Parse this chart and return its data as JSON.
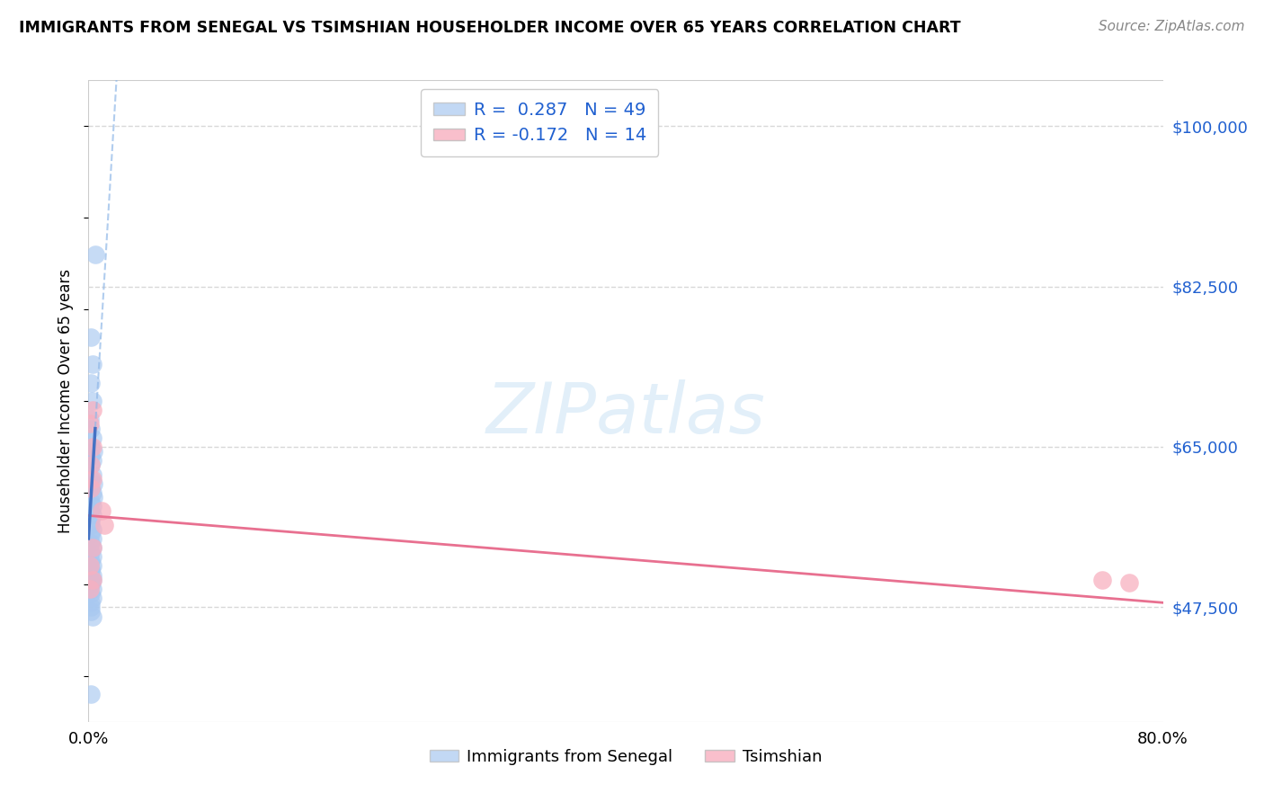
{
  "title": "IMMIGRANTS FROM SENEGAL VS TSIMSHIAN HOUSEHOLDER INCOME OVER 65 YEARS CORRELATION CHART",
  "source": "Source: ZipAtlas.com",
  "ylabel": "Householder Income Over 65 years",
  "xlim": [
    0.0,
    0.8
  ],
  "ylim": [
    35000,
    105000
  ],
  "yticks": [
    47500,
    65000,
    82500,
    100000
  ],
  "ytick_labels": [
    "$47,500",
    "$65,000",
    "$82,500",
    "$100,000"
  ],
  "xticks": [
    0.0,
    0.1,
    0.2,
    0.3,
    0.4,
    0.5,
    0.6,
    0.7,
    0.8
  ],
  "xtick_labels": [
    "0.0%",
    "",
    "",
    "",
    "",
    "",
    "",
    "",
    "80.0%"
  ],
  "background_color": "#ffffff",
  "grid_color": "#d8d8d8",
  "senegal_color": "#a8c8f0",
  "tsimshian_color": "#f8b0c0",
  "senegal_line_solid_color": "#4472c4",
  "senegal_line_dash_color": "#90b8e8",
  "tsimshian_line_color": "#e87090",
  "R_senegal": 0.287,
  "N_senegal": 49,
  "R_tsimshian": -0.172,
  "N_tsimshian": 14,
  "watermark": "ZIPatlas",
  "senegal_label": "Immigrants from Senegal",
  "tsimshian_label": "Tsimshian",
  "legend_R_color": "#2060d0",
  "legend_N_color": "#2060d0",
  "senegal_points_x": [
    0.005,
    0.002,
    0.003,
    0.002,
    0.003,
    0.001,
    0.002,
    0.003,
    0.002,
    0.004,
    0.002,
    0.003,
    0.002,
    0.003,
    0.002,
    0.004,
    0.002,
    0.003,
    0.004,
    0.002,
    0.003,
    0.002,
    0.003,
    0.002,
    0.002,
    0.003,
    0.002,
    0.003,
    0.002,
    0.003,
    0.002,
    0.003,
    0.002,
    0.003,
    0.002,
    0.002,
    0.003,
    0.002,
    0.003,
    0.002,
    0.002,
    0.003,
    0.002,
    0.003,
    0.002,
    0.002,
    0.002,
    0.003,
    0.002
  ],
  "senegal_points_y": [
    86000,
    77000,
    74000,
    72000,
    70000,
    68000,
    67000,
    66000,
    65000,
    64500,
    64000,
    63500,
    63000,
    62000,
    61500,
    61000,
    60500,
    60000,
    59500,
    59000,
    58500,
    58000,
    57500,
    57000,
    56500,
    56000,
    55500,
    55000,
    54500,
    54000,
    53500,
    53000,
    52500,
    52000,
    51800,
    51500,
    51000,
    50800,
    50500,
    50200,
    50000,
    49500,
    49000,
    48500,
    48000,
    47500,
    47000,
    46500,
    38000
  ],
  "tsimshian_points_x": [
    0.003,
    0.001,
    0.003,
    0.002,
    0.003,
    0.002,
    0.01,
    0.012,
    0.003,
    0.001,
    0.003,
    0.001,
    0.755,
    0.775
  ],
  "tsimshian_points_y": [
    69000,
    67500,
    65000,
    63000,
    61500,
    60500,
    58000,
    56500,
    54000,
    52000,
    50500,
    49500,
    50500,
    50200
  ],
  "senegal_line_x0": 0.0,
  "senegal_line_x_solid_end": 0.005,
  "senegal_line_x_dash_end": 0.22,
  "senegal_line_y_at_0": 55000,
  "senegal_line_slope": 2400000,
  "tsimshian_line_x0": 0.0,
  "tsimshian_line_x1": 0.8,
  "tsimshian_line_y0": 57500,
  "tsimshian_line_y1": 48000
}
